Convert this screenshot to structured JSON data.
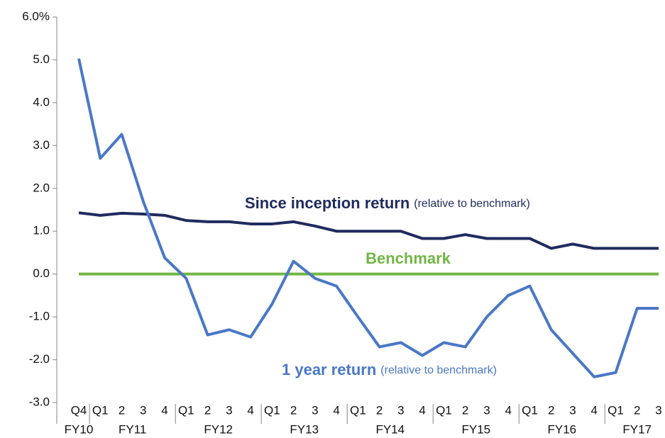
{
  "chart_data": {
    "type": "line",
    "categories": [
      "Q4",
      "Q1",
      "2",
      "3",
      "4",
      "Q1",
      "2",
      "3",
      "4",
      "Q1",
      "2",
      "3",
      "4",
      "Q1",
      "2",
      "3",
      "4",
      "Q1",
      "2",
      "3",
      "4",
      "Q1",
      "2",
      "3",
      "4",
      "Q1",
      "2",
      "3"
    ],
    "groups": [
      "FY10",
      "FY11",
      "FY12",
      "FY13",
      "FY14",
      "FY15",
      "FY16",
      "FY17"
    ],
    "series": [
      {
        "name": "Since inception return",
        "note": "(relative to benchmark)",
        "color": "#1f2b5e",
        "values": [
          1.43,
          1.37,
          1.42,
          1.4,
          1.37,
          1.25,
          1.22,
          1.22,
          1.17,
          1.17,
          1.22,
          1.12,
          1.0,
          1.0,
          1.0,
          1.0,
          0.83,
          0.83,
          0.92,
          0.83,
          0.83,
          0.83,
          0.6,
          0.7,
          0.6,
          0.6,
          0.6,
          0.6
        ]
      },
      {
        "name": "Benchmark",
        "color": "#72b644",
        "values": [
          0,
          0,
          0,
          0,
          0,
          0,
          0,
          0,
          0,
          0,
          0,
          0,
          0,
          0,
          0,
          0,
          0,
          0,
          0,
          0,
          0,
          0,
          0,
          0,
          0,
          0,
          0,
          0
        ]
      },
      {
        "name": "1 year return",
        "note": "(relative to benchmark)",
        "color": "#4a78c6",
        "values": [
          5.03,
          2.7,
          3.26,
          1.7,
          0.38,
          -0.1,
          -1.42,
          -1.3,
          -1.47,
          -0.7,
          0.3,
          -0.1,
          -0.28,
          -1.0,
          -1.7,
          -1.6,
          -1.9,
          -1.6,
          -1.7,
          -1.0,
          -0.5,
          -0.28,
          -1.3,
          -1.85,
          -2.4,
          -2.3,
          -0.8,
          -0.8
        ]
      }
    ],
    "ylim": [
      -3,
      6
    ],
    "yticks": [
      {
        "value": -3,
        "label": "-3.0"
      },
      {
        "value": -2,
        "label": "-2.0"
      },
      {
        "value": -1,
        "label": "-1.0"
      },
      {
        "value": 0,
        "label": "0.0"
      },
      {
        "value": 1,
        "label": "1.0"
      },
      {
        "value": 2,
        "label": "2.0"
      },
      {
        "value": 3,
        "label": "3.0"
      },
      {
        "value": 4,
        "label": "4.0"
      },
      {
        "value": 5,
        "label": "5.0"
      },
      {
        "value": 6,
        "label": "6.0%"
      }
    ]
  }
}
